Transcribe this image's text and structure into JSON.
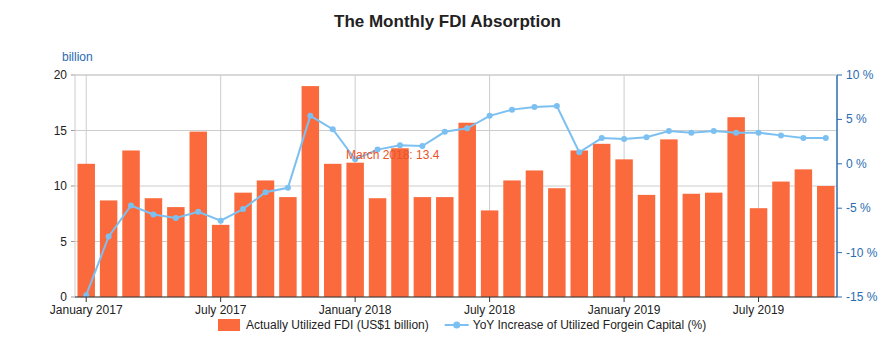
{
  "chart_data": {
    "type": "bar",
    "title": "The Monthly FDI Absorption",
    "ylabel": "billion",
    "categories": [
      "January 2017",
      null,
      null,
      null,
      null,
      null,
      "July 2017",
      null,
      null,
      null,
      null,
      null,
      "January 2018",
      null,
      null,
      null,
      null,
      null,
      "July 2018",
      null,
      null,
      null,
      null,
      null,
      "January 2019",
      null,
      null,
      null,
      null,
      null,
      "July 2019",
      null,
      null,
      null
    ],
    "series": [
      {
        "name": "Actually Utilized FDI (US$1 billion)",
        "type": "bar",
        "color": "#fa6a3c",
        "values": [
          12.0,
          8.7,
          13.2,
          8.9,
          8.1,
          14.9,
          6.5,
          9.4,
          10.5,
          9.0,
          19.0,
          12.0,
          12.1,
          8.9,
          13.4,
          9.0,
          9.0,
          15.7,
          7.8,
          10.5,
          11.4,
          9.8,
          13.2,
          13.8,
          12.4,
          9.2,
          14.2,
          9.3,
          9.4,
          16.2,
          8.0,
          10.4,
          11.5,
          10.0
        ]
      },
      {
        "name": "YoY Increase of Utilized Forgein Capital (%)",
        "type": "line",
        "axis": "y2",
        "color": "#7cc0f2",
        "marker": "circle",
        "values": [
          -14.8,
          -8.2,
          -4.7,
          -5.7,
          -6.1,
          -5.4,
          -6.4,
          -5.1,
          -3.2,
          -2.7,
          5.4,
          3.9,
          0.5,
          1.6,
          2.1,
          2.0,
          3.6,
          4.0,
          5.4,
          6.1,
          6.4,
          6.5,
          1.3,
          2.9,
          2.8,
          3.0,
          3.7,
          3.5,
          3.7,
          3.5,
          3.5,
          3.2,
          2.9,
          2.9
        ]
      }
    ],
    "ylim": [
      0,
      20
    ],
    "yticks": [
      0,
      5,
      10,
      15,
      20
    ],
    "y2lim": [
      -15,
      10
    ],
    "y2ticks": [
      {
        "value": -15,
        "label": "-15 %"
      },
      {
        "value": -10,
        "label": "-10 %"
      },
      {
        "value": -5,
        "label": "-5 %"
      },
      {
        "value": 0,
        "label": "0 %"
      },
      {
        "value": 5,
        "label": "5 %"
      },
      {
        "value": 10,
        "label": "10 %"
      }
    ],
    "annotations": [
      {
        "text": "March 2018: 13.4"
      }
    ],
    "grid": true,
    "legend": "bottom"
  }
}
